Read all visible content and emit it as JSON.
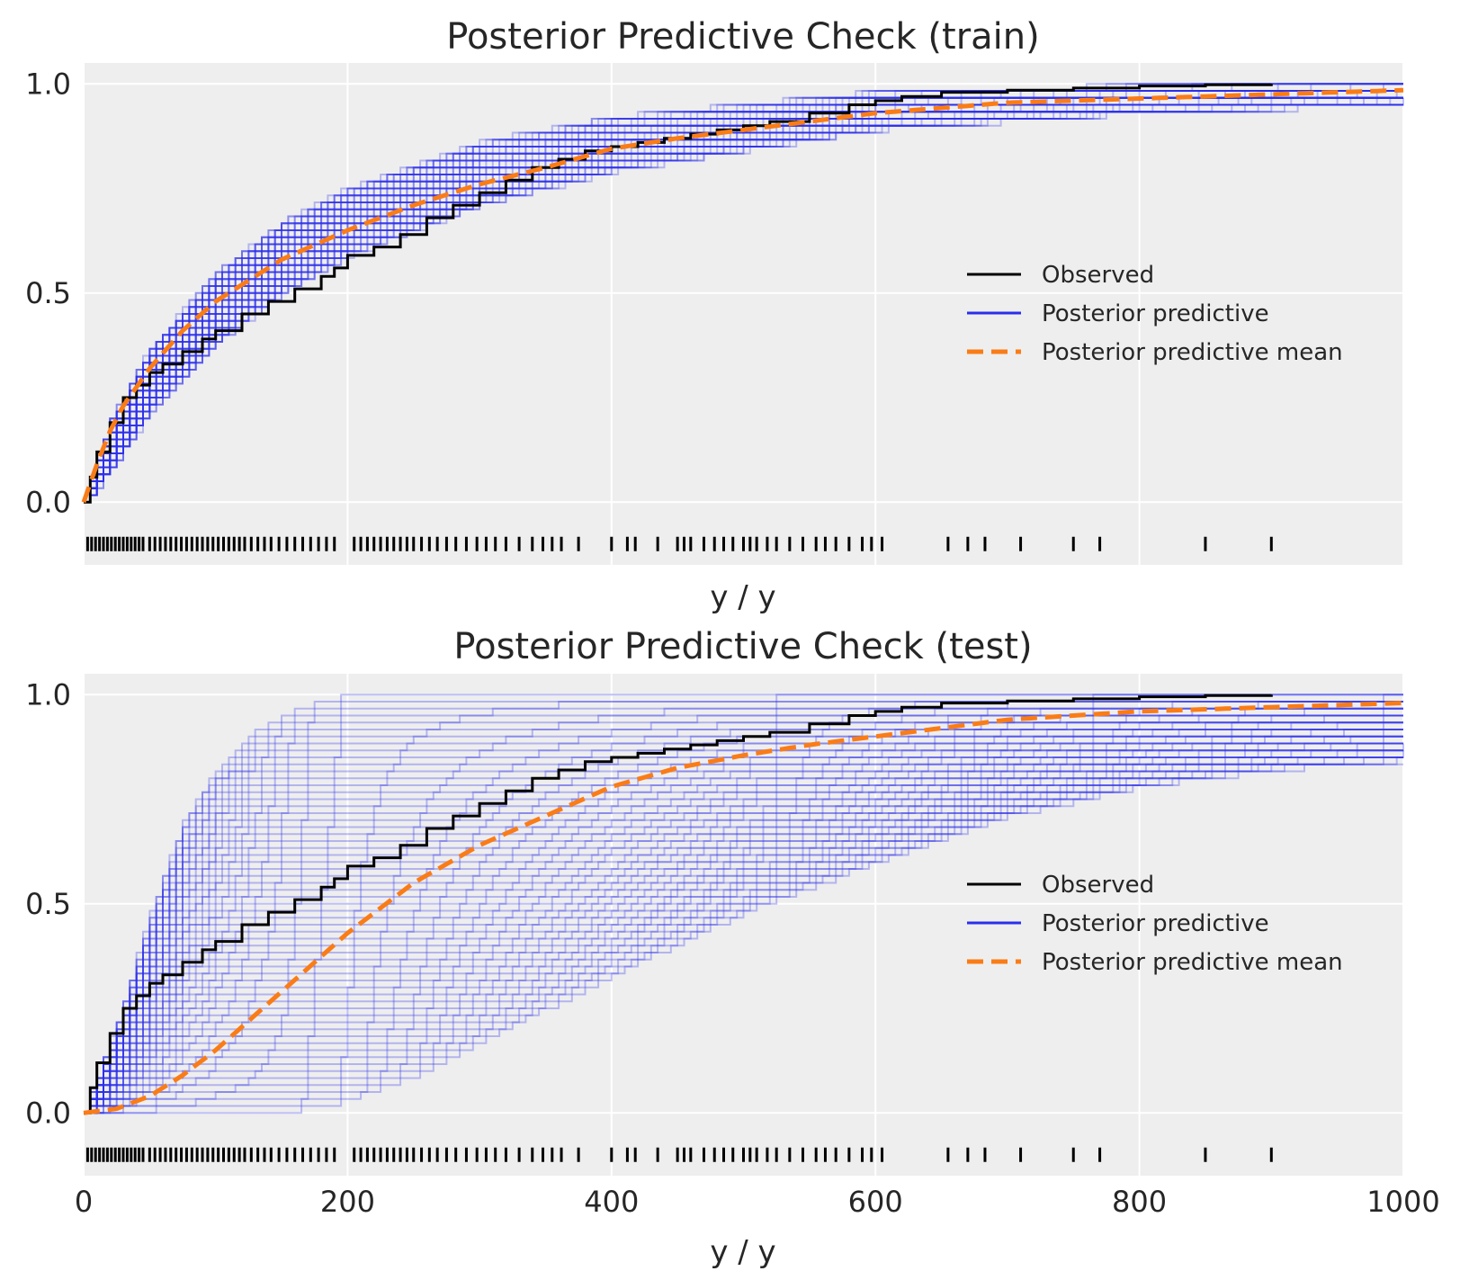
{
  "chart_data": [
    {
      "type": "line",
      "kind": "empirical-cdf",
      "title": "Posterior Predictive Check (train)",
      "xlabel": "y / y",
      "ylabel": "",
      "xlim": [
        0,
        1000
      ],
      "ylim": [
        -0.15,
        1.05
      ],
      "xticks": [
        "0",
        "200",
        "400",
        "600",
        "800",
        "1000"
      ],
      "xtick_labels_visible": false,
      "yticks": [
        "0.0",
        "0.5",
        "1.0"
      ],
      "grid": true,
      "legend_position": "center-right",
      "legend": [
        "Observed",
        "Posterior predictive",
        "Posterior predictive mean"
      ],
      "series": [
        {
          "name": "Observed",
          "color": "#000000",
          "x": [
            0,
            5,
            10,
            20,
            30,
            40,
            50,
            60,
            75,
            90,
            100,
            120,
            140,
            160,
            180,
            190,
            200,
            220,
            240,
            260,
            280,
            300,
            320,
            340,
            360,
            380,
            400,
            420,
            440,
            460,
            480,
            500,
            520,
            550,
            580,
            600,
            620,
            650,
            700,
            750,
            800,
            850,
            900
          ],
          "y": [
            0.0,
            0.06,
            0.12,
            0.19,
            0.25,
            0.28,
            0.31,
            0.33,
            0.36,
            0.39,
            0.41,
            0.45,
            0.48,
            0.51,
            0.54,
            0.56,
            0.59,
            0.61,
            0.64,
            0.68,
            0.71,
            0.74,
            0.77,
            0.8,
            0.82,
            0.84,
            0.85,
            0.86,
            0.87,
            0.88,
            0.89,
            0.9,
            0.91,
            0.93,
            0.95,
            0.96,
            0.97,
            0.98,
            0.985,
            0.99,
            0.995,
            0.998,
            1.0
          ]
        },
        {
          "name": "Posterior predictive",
          "color": "#2a2eec",
          "band_lower": {
            "x": [
              0,
              20,
              50,
              100,
              150,
              200,
              300,
              400,
              600,
              800,
              1000
            ],
            "y": [
              0.0,
              0.08,
              0.22,
              0.38,
              0.5,
              0.59,
              0.71,
              0.79,
              0.89,
              0.93,
              0.95
            ]
          },
          "band_upper": {
            "x": [
              0,
              20,
              50,
              100,
              150,
              200,
              300,
              400,
              600,
              800,
              1000
            ],
            "y": [
              0.0,
              0.2,
              0.37,
              0.55,
              0.67,
              0.75,
              0.86,
              0.92,
              0.98,
              0.995,
              1.0
            ]
          }
        },
        {
          "name": "Posterior predictive mean",
          "color": "#fa7c17",
          "style": "dashed",
          "x": [
            0,
            10,
            20,
            30,
            50,
            75,
            100,
            150,
            200,
            250,
            300,
            350,
            400,
            450,
            500,
            600,
            700,
            800,
            900,
            1000
          ],
          "y": [
            0.0,
            0.09,
            0.17,
            0.23,
            0.32,
            0.41,
            0.48,
            0.58,
            0.65,
            0.71,
            0.76,
            0.8,
            0.845,
            0.87,
            0.89,
            0.93,
            0.955,
            0.965,
            0.975,
            0.985
          ]
        }
      ],
      "rug": [
        3,
        6,
        9,
        12,
        15,
        18,
        21,
        24,
        27,
        30,
        33,
        36,
        39,
        42,
        45,
        50,
        54,
        58,
        62,
        66,
        70,
        74,
        78,
        82,
        86,
        90,
        94,
        98,
        102,
        106,
        110,
        114,
        118,
        122,
        127,
        132,
        137,
        142,
        148,
        154,
        160,
        166,
        172,
        178,
        184,
        190,
        205,
        210,
        215,
        220,
        225,
        230,
        235,
        240,
        245,
        250,
        256,
        262,
        268,
        275,
        282,
        290,
        298,
        305,
        312,
        320,
        330,
        340,
        348,
        355,
        362,
        375,
        400,
        412,
        418,
        435,
        450,
        455,
        460,
        470,
        478,
        485,
        492,
        500,
        505,
        510,
        518,
        525,
        535,
        545,
        555,
        562,
        570,
        580,
        590,
        597,
        605,
        655,
        670,
        683,
        710,
        750,
        770,
        850,
        900
      ]
    },
    {
      "type": "line",
      "kind": "empirical-cdf",
      "title": "Posterior Predictive Check (test)",
      "xlabel": "y / y",
      "ylabel": "",
      "xlim": [
        0,
        1000
      ],
      "ylim": [
        -0.15,
        1.05
      ],
      "xticks": [
        "0",
        "200",
        "400",
        "600",
        "800",
        "1000"
      ],
      "xtick_labels_visible": true,
      "yticks": [
        "0.0",
        "0.5",
        "1.0"
      ],
      "grid": true,
      "legend_position": "center-right",
      "legend": [
        "Observed",
        "Posterior predictive",
        "Posterior predictive mean"
      ],
      "series": [
        {
          "name": "Observed",
          "color": "#000000",
          "x": [
            0,
            5,
            10,
            20,
            30,
            40,
            50,
            60,
            75,
            90,
            100,
            120,
            140,
            160,
            180,
            190,
            200,
            220,
            240,
            260,
            280,
            300,
            320,
            340,
            360,
            380,
            400,
            420,
            440,
            460,
            480,
            500,
            520,
            550,
            580,
            600,
            620,
            650,
            700,
            750,
            800,
            850,
            900
          ],
          "y": [
            0.0,
            0.06,
            0.12,
            0.19,
            0.25,
            0.28,
            0.31,
            0.33,
            0.36,
            0.39,
            0.41,
            0.45,
            0.48,
            0.51,
            0.54,
            0.56,
            0.59,
            0.61,
            0.64,
            0.68,
            0.71,
            0.74,
            0.77,
            0.8,
            0.82,
            0.84,
            0.85,
            0.86,
            0.87,
            0.88,
            0.89,
            0.9,
            0.91,
            0.93,
            0.95,
            0.96,
            0.97,
            0.98,
            0.985,
            0.99,
            0.995,
            0.998,
            1.0
          ]
        },
        {
          "name": "Posterior predictive",
          "color": "#2a2eec",
          "band_lower": {
            "x": [
              0,
              100,
              150,
              200,
              250,
              300,
              400,
              500,
              600,
              700,
              800,
              900,
              1000
            ],
            "y": [
              0.0,
              0.0,
              0.0,
              0.03,
              0.09,
              0.17,
              0.33,
              0.48,
              0.6,
              0.71,
              0.78,
              0.82,
              0.84
            ]
          },
          "band_upper": {
            "x": [
              0,
              25,
              50,
              75,
              100,
              125,
              150,
              175,
              200,
              250,
              300,
              1000
            ],
            "y": [
              0.0,
              0.22,
              0.48,
              0.7,
              0.82,
              0.9,
              0.95,
              0.98,
              0.995,
              1.0,
              1.0,
              1.0
            ]
          }
        },
        {
          "name": "Posterior predictive mean",
          "color": "#fa7c17",
          "style": "dashed",
          "x": [
            0,
            25,
            50,
            75,
            100,
            150,
            200,
            250,
            300,
            350,
            400,
            450,
            500,
            550,
            600,
            650,
            700,
            800,
            900,
            1000
          ],
          "y": [
            0.0,
            0.01,
            0.04,
            0.09,
            0.15,
            0.29,
            0.43,
            0.55,
            0.64,
            0.71,
            0.78,
            0.825,
            0.855,
            0.88,
            0.9,
            0.92,
            0.94,
            0.96,
            0.97,
            0.98
          ]
        }
      ],
      "rug": [
        3,
        6,
        9,
        12,
        15,
        18,
        21,
        24,
        27,
        30,
        33,
        36,
        39,
        42,
        45,
        50,
        54,
        58,
        62,
        66,
        70,
        74,
        78,
        82,
        86,
        90,
        94,
        98,
        102,
        106,
        110,
        114,
        118,
        122,
        127,
        132,
        137,
        142,
        148,
        154,
        160,
        166,
        172,
        178,
        184,
        190,
        205,
        210,
        215,
        220,
        225,
        230,
        235,
        240,
        245,
        250,
        256,
        262,
        268,
        275,
        282,
        290,
        298,
        305,
        312,
        320,
        330,
        340,
        348,
        355,
        362,
        375,
        400,
        412,
        418,
        435,
        450,
        455,
        460,
        470,
        478,
        485,
        492,
        500,
        505,
        510,
        518,
        525,
        535,
        545,
        555,
        562,
        570,
        580,
        590,
        597,
        605,
        655,
        670,
        683,
        710,
        750,
        770,
        850,
        900
      ]
    }
  ],
  "colors": {
    "background": "#eeeeee",
    "grid": "#ffffff",
    "observed": "#000000",
    "predictive": "#2a2eec",
    "mean": "#fa7c17"
  }
}
